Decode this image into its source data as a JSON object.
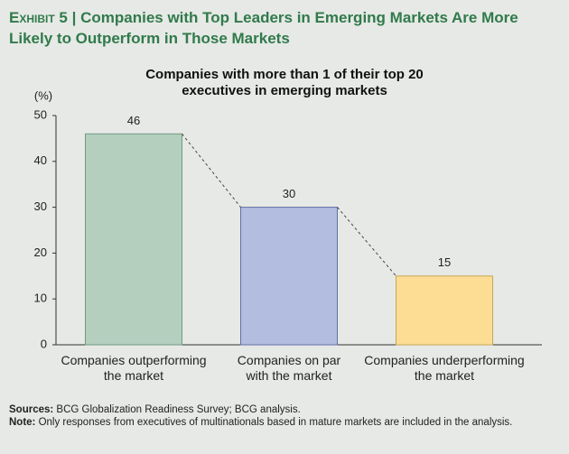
{
  "header": {
    "exhibit": "Exhibit 5",
    "separator": "|",
    "title": "Companies with Top Leaders in Emerging Markets Are More Likely to Outperform in Those Markets"
  },
  "chart_data": {
    "type": "bar",
    "title": "Companies with more than 1 of their top 20\nexecutives in emerging markets",
    "y_unit": "(%)",
    "categories": [
      "Companies outperforming\nthe market",
      "Companies on par\nwith the market",
      "Companies underperforming\nthe market"
    ],
    "values": [
      46,
      30,
      15
    ],
    "colors": [
      "#b5cfbf",
      "#b3bddf",
      "#fcdd93"
    ],
    "edge_colors": [
      "#6f9a82",
      "#5e6fa6",
      "#c8a656"
    ],
    "ylim": [
      0,
      50
    ],
    "yticks": [
      0,
      10,
      20,
      30,
      40,
      50
    ],
    "grid": false,
    "connectors": true
  },
  "footer": {
    "sources": {
      "label": "Sources:",
      "text": "BCG Globalization Readiness Survey; BCG analysis."
    },
    "note": {
      "label": "Note:",
      "text": "Only responses from executives of multinationals based in mature markets are included in the analysis."
    }
  }
}
